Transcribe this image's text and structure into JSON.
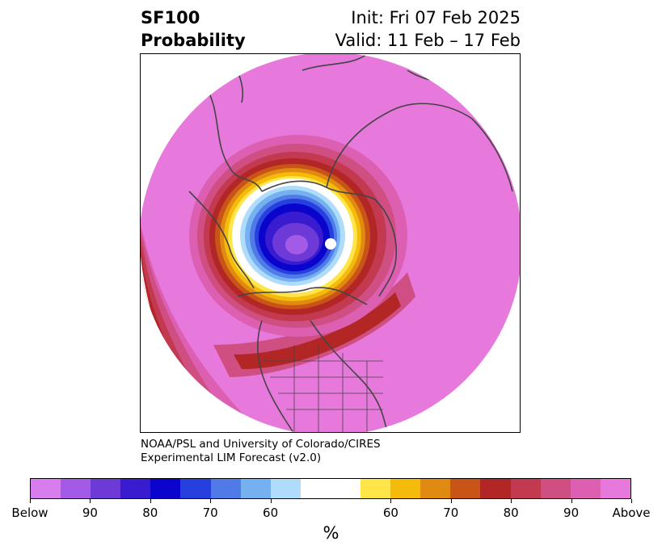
{
  "title": {
    "left_line1": "SF100",
    "left_line2": "Probability",
    "right_line1": "Init: Fri 07 Feb 2025",
    "right_line2": "Valid: 11 Feb – 17 Feb"
  },
  "credit": {
    "line1": "NOAA/PSL and University of Colorado/CIRES",
    "line2": "Experimental LIM Forecast (v2.0)"
  },
  "colorbar": {
    "colors": [
      "#d77ded",
      "#a35ae6",
      "#6d3ad8",
      "#3a1cd0",
      "#0a04cc",
      "#2540dc",
      "#4f7ae8",
      "#75b0f0",
      "#aedcfa",
      "#ffffff",
      "#ffffff",
      "#ffe44a",
      "#f4bb0a",
      "#e08a12",
      "#c85418",
      "#b32626",
      "#c23950",
      "#cf4f82",
      "#dc5fb2",
      "#e879dc"
    ],
    "tick_labels": [
      "Below",
      "90",
      "80",
      "70",
      "60",
      "60",
      "70",
      "80",
      "90",
      "Above"
    ],
    "unit_label": "%"
  },
  "map_colors": {
    "above_extreme": "#e879dc",
    "ring_90": "#dc5fb2",
    "ring_85": "#cf4f82",
    "ring_80": "#c23950",
    "ring_75": "#b32626",
    "ring_70": "#c85418",
    "ring_65": "#e08a12",
    "ring_60": "#f4bb0a",
    "ring_55": "#ffe44a",
    "neutral": "#ffffff",
    "blue_55": "#aedcfa",
    "blue_60": "#75b0f0",
    "blue_65": "#4f7ae8",
    "blue_70": "#2540dc",
    "blue_75": "#0a04cc",
    "blue_80": "#3a1cd0",
    "blue_85": "#6d3ad8",
    "below_extreme": "#a35ae6",
    "coast": "#444444"
  }
}
